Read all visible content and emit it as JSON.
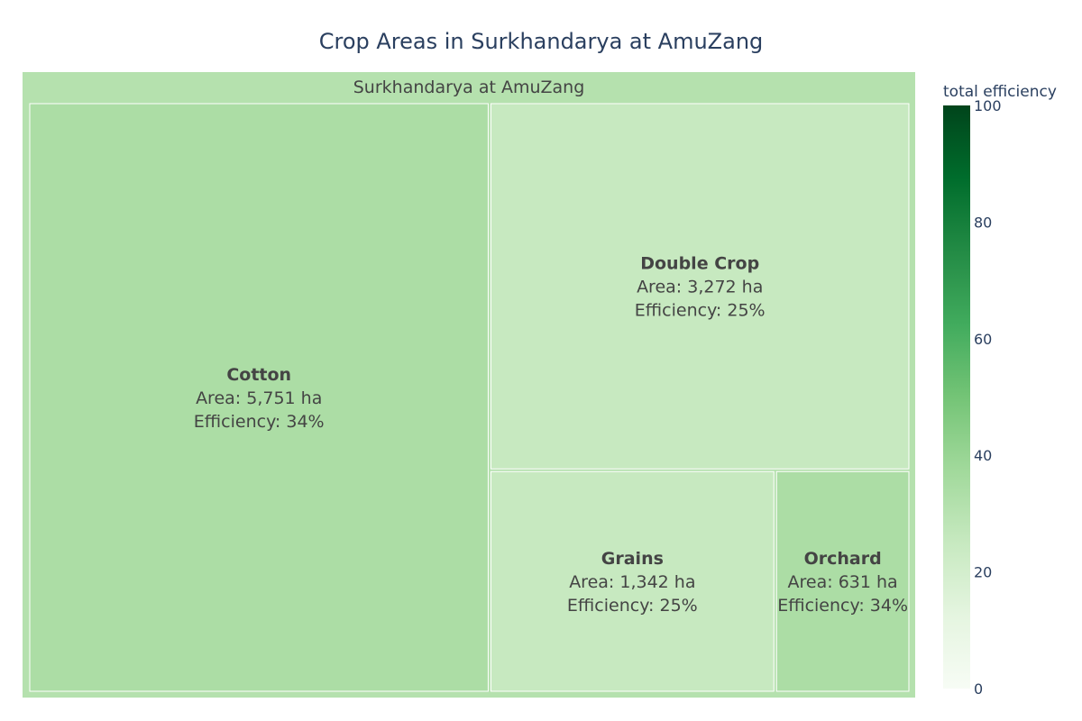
{
  "chart_data": {
    "type": "treemap",
    "title": "Crop Areas in Surkhandarya at AmuZang",
    "root": {
      "label": "Surkhandarya at AmuZang",
      "total_efficiency": 31
    },
    "items": [
      {
        "name": "Cotton",
        "area": 5751,
        "area_text": "Area: 5,751 ha",
        "efficiency": 34,
        "efficiency_text": "Efficiency: 34%"
      },
      {
        "name": "Double Crop",
        "area": 3272,
        "area_text": "Area: 3,272 ha",
        "efficiency": 25,
        "efficiency_text": "Efficiency: 25%"
      },
      {
        "name": "Grains",
        "area": 1342,
        "area_text": "Area: 1,342 ha",
        "efficiency": 25,
        "efficiency_text": "Efficiency: 25%"
      },
      {
        "name": "Orchard",
        "area": 631,
        "area_text": "Area: 631 ha",
        "efficiency": 34,
        "efficiency_text": "Efficiency: 34%"
      }
    ],
    "colorbar": {
      "title": "total efficiency",
      "range": [
        0,
        100
      ],
      "ticks": [
        "0",
        "20",
        "40",
        "60",
        "80",
        "100"
      ],
      "colorscale": [
        "#f7fcf5",
        "#e5f5e0",
        "#c7e9c0",
        "#a1d99b",
        "#74c476",
        "#41ab5d",
        "#238b45",
        "#006d2c",
        "#00441b"
      ]
    }
  }
}
